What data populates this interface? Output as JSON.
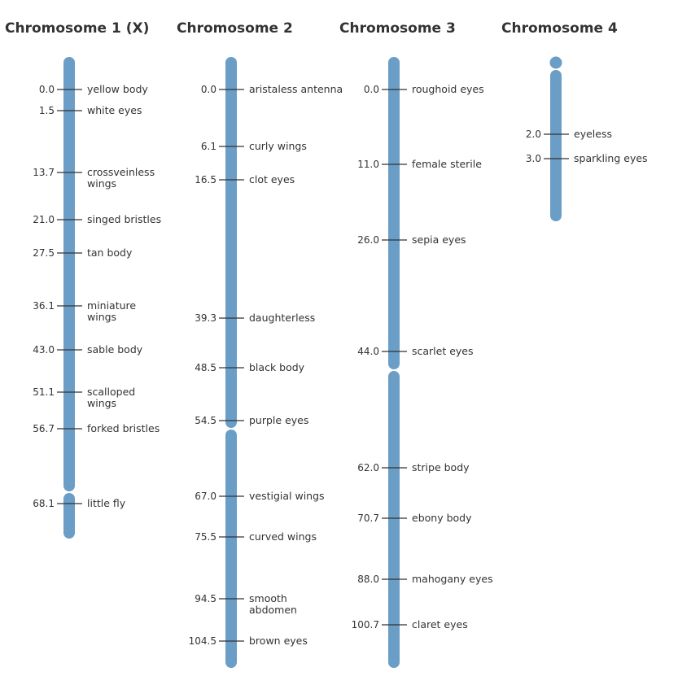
{
  "colors": {
    "chromosome": "#6b9ec6",
    "text": "#333333",
    "tick": "#333333"
  },
  "chromosomes": [
    {
      "title": "Chromosome 1 (X)",
      "loci": [
        {
          "pos": "0.0",
          "label": [
            "yellow body"
          ]
        },
        {
          "pos": "1.5",
          "label": [
            "white eyes"
          ]
        },
        {
          "pos": "13.7",
          "label": [
            "crossveinless",
            "wings"
          ]
        },
        {
          "pos": "21.0",
          "label": [
            "singed bristles"
          ]
        },
        {
          "pos": "27.5",
          "label": [
            "tan body"
          ]
        },
        {
          "pos": "36.1",
          "label": [
            "miniature",
            "wings"
          ]
        },
        {
          "pos": "43.0",
          "label": [
            "sable body"
          ]
        },
        {
          "pos": "51.1",
          "label": [
            "scalloped",
            "wings"
          ]
        },
        {
          "pos": "56.7",
          "label": [
            "forked bristles"
          ]
        },
        {
          "pos": "68.1",
          "label": [
            "little fly"
          ]
        }
      ]
    },
    {
      "title": "Chromosome 2",
      "loci": [
        {
          "pos": "0.0",
          "label": [
            "aristaless antenna"
          ]
        },
        {
          "pos": "6.1",
          "label": [
            "curly wings"
          ]
        },
        {
          "pos": "16.5",
          "label": [
            "clot eyes"
          ]
        },
        {
          "pos": "39.3",
          "label": [
            "daughterless"
          ]
        },
        {
          "pos": "48.5",
          "label": [
            "black body"
          ]
        },
        {
          "pos": "54.5",
          "label": [
            "purple eyes"
          ]
        },
        {
          "pos": "67.0",
          "label": [
            "vestigial wings"
          ]
        },
        {
          "pos": "75.5",
          "label": [
            "curved wings"
          ]
        },
        {
          "pos": "94.5",
          "label": [
            "smooth",
            "abdomen"
          ]
        },
        {
          "pos": "104.5",
          "label": [
            "brown eyes"
          ]
        }
      ]
    },
    {
      "title": "Chromosome 3",
      "loci": [
        {
          "pos": "0.0",
          "label": [
            "roughoid eyes"
          ]
        },
        {
          "pos": "11.0",
          "label": [
            "female sterile"
          ]
        },
        {
          "pos": "26.0",
          "label": [
            "sepia eyes"
          ]
        },
        {
          "pos": "44.0",
          "label": [
            "scarlet eyes"
          ]
        },
        {
          "pos": "62.0",
          "label": [
            "stripe body"
          ]
        },
        {
          "pos": "70.7",
          "label": [
            "ebony body"
          ]
        },
        {
          "pos": "88.0",
          "label": [
            "mahogany eyes"
          ]
        },
        {
          "pos": "100.7",
          "label": [
            "claret eyes"
          ]
        }
      ]
    },
    {
      "title": "Chromosome 4",
      "loci": [
        {
          "pos": "2.0",
          "label": [
            "eyeless"
          ]
        },
        {
          "pos": "3.0",
          "label": [
            "sparkling eyes"
          ]
        }
      ]
    }
  ]
}
